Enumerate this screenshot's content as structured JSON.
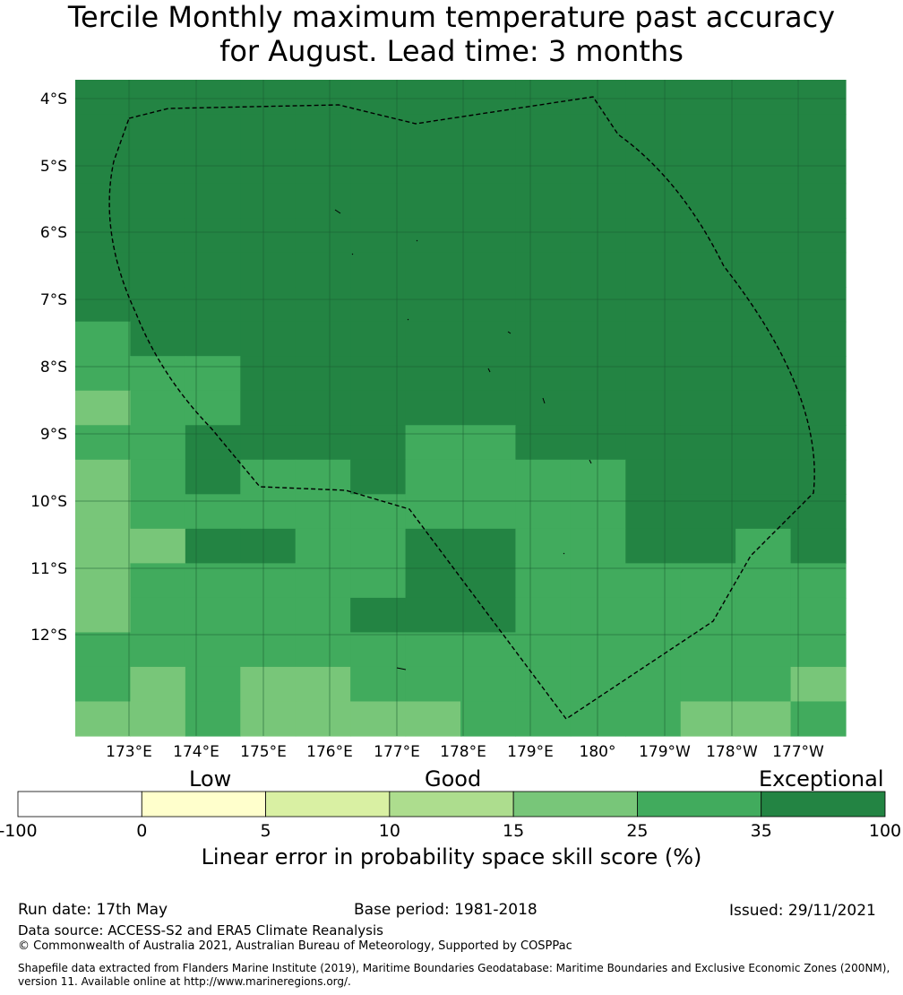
{
  "title": {
    "line1": "Tercile Monthly maximum temperature past accuracy",
    "line2": "for August. Lead time: 3 months"
  },
  "map": {
    "lat_labels": [
      "4°S",
      "5°S",
      "6°S",
      "7°S",
      "8°S",
      "9°S",
      "10°S",
      "11°S",
      "12°S"
    ],
    "lon_labels": [
      "173°E",
      "174°E",
      "175°E",
      "176°E",
      "177°E",
      "178°E",
      "179°E",
      "180°",
      "179°W",
      "178°W",
      "177°W"
    ],
    "grid": {
      "legend": "values are skill-score class index: 4 = 15-25, 5 = 25-35, 6 = 35-100",
      "rows": [
        [
          6,
          6,
          6,
          6,
          6,
          6,
          6,
          6,
          6,
          6,
          6,
          6,
          6,
          6
        ],
        [
          6,
          6,
          6,
          6,
          6,
          6,
          6,
          6,
          6,
          6,
          6,
          6,
          6,
          6
        ],
        [
          6,
          6,
          6,
          6,
          6,
          6,
          6,
          6,
          6,
          6,
          6,
          6,
          6,
          6
        ],
        [
          6,
          6,
          6,
          6,
          6,
          6,
          6,
          6,
          6,
          6,
          6,
          6,
          6,
          6
        ],
        [
          6,
          6,
          6,
          6,
          6,
          6,
          6,
          6,
          6,
          6,
          6,
          6,
          6,
          6
        ],
        [
          6,
          6,
          6,
          6,
          6,
          6,
          6,
          6,
          6,
          6,
          6,
          6,
          6,
          6
        ],
        [
          6,
          6,
          6,
          6,
          6,
          6,
          6,
          6,
          6,
          6,
          6,
          6,
          6,
          6
        ],
        [
          5,
          6,
          6,
          6,
          6,
          6,
          6,
          6,
          6,
          6,
          6,
          6,
          6,
          6
        ],
        [
          5,
          5,
          5,
          6,
          6,
          6,
          6,
          6,
          6,
          6,
          6,
          6,
          6,
          6
        ],
        [
          4,
          5,
          5,
          6,
          6,
          6,
          6,
          6,
          6,
          6,
          6,
          6,
          6,
          6
        ],
        [
          5,
          5,
          6,
          6,
          6,
          6,
          5,
          5,
          6,
          6,
          6,
          6,
          6,
          6
        ],
        [
          4,
          5,
          6,
          5,
          5,
          6,
          5,
          5,
          5,
          5,
          6,
          6,
          6,
          6
        ],
        [
          4,
          5,
          5,
          5,
          5,
          5,
          5,
          5,
          5,
          5,
          6,
          6,
          6,
          6
        ],
        [
          4,
          4,
          6,
          6,
          5,
          5,
          6,
          6,
          5,
          5,
          6,
          6,
          5,
          6
        ],
        [
          4,
          5,
          5,
          5,
          5,
          5,
          6,
          6,
          5,
          5,
          5,
          5,
          5,
          5
        ],
        [
          4,
          5,
          5,
          5,
          5,
          6,
          6,
          6,
          5,
          5,
          5,
          5,
          5,
          5
        ],
        [
          5,
          5,
          5,
          5,
          5,
          5,
          5,
          5,
          5,
          5,
          5,
          5,
          5,
          5
        ],
        [
          5,
          4,
          5,
          4,
          4,
          5,
          5,
          5,
          5,
          5,
          5,
          5,
          5,
          4
        ],
        [
          4,
          4,
          5,
          4,
          4,
          4,
          4,
          5,
          5,
          5,
          5,
          4,
          4,
          5
        ]
      ]
    }
  },
  "colorbar": {
    "category_labels": [
      "Low",
      "Good",
      "Exceptional"
    ],
    "ticks": [
      "-100",
      "0",
      "5",
      "10",
      "15",
      "25",
      "35",
      "100"
    ],
    "colors": [
      "#ffffff",
      "#ffffcc",
      "#d9f0a3",
      "#addd8e",
      "#78c679",
      "#41ab5d",
      "#238443"
    ],
    "axis_label": "Linear error in probability space skill score (%)"
  },
  "footer": {
    "run_date": "Run date: 17th May",
    "base_period": "Base period: 1981-2018",
    "issued": "Issued: 29/11/2021",
    "data_source": "Data source: ACCESS-S2 and ERA5 Climate Reanalysis",
    "copyright": "© Commonwealth of Australia 2021, Australian Bureau of Meteorology, Supported by COSPPac",
    "shapefile_line1": "Shapefile data extracted from Flanders Marine Institute (2019), Maritime Boundaries Geodatabase: Maritime Boundaries and Exclusive Economic Zones (200NM),",
    "shapefile_line2": "version 11. Available online at http://www.marineregions.org/."
  }
}
